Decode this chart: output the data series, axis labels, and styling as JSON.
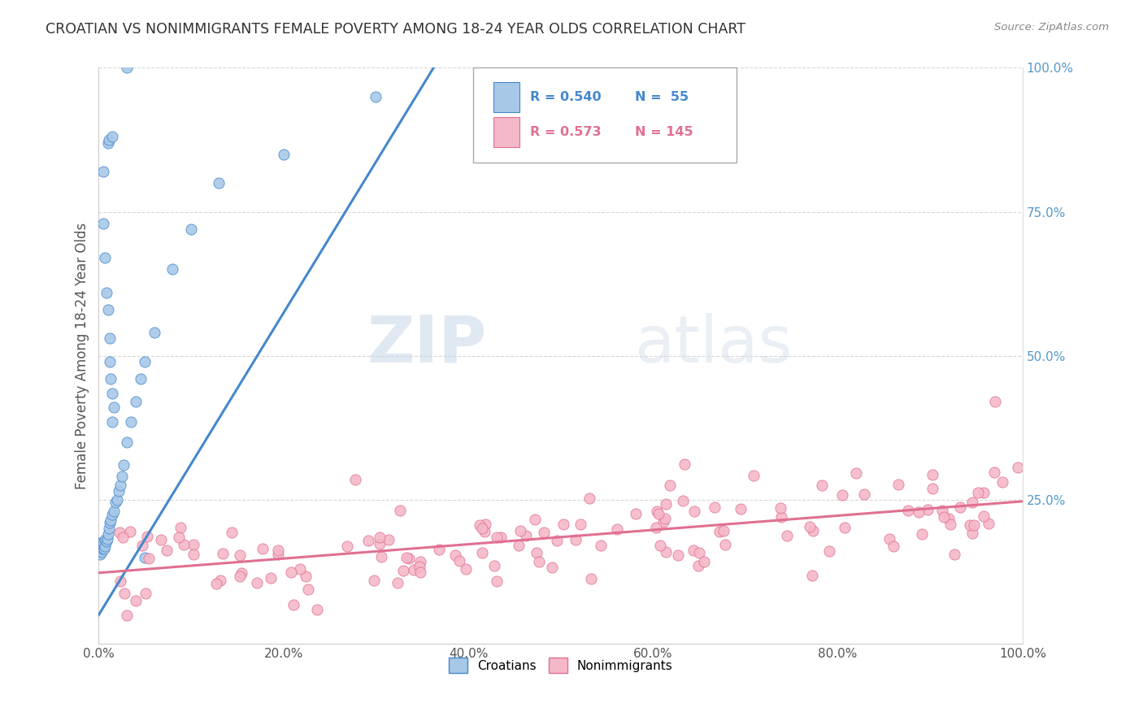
{
  "title": "CROATIAN VS NONIMMIGRANTS FEMALE POVERTY AMONG 18-24 YEAR OLDS CORRELATION CHART",
  "source": "Source: ZipAtlas.com",
  "ylabel": "Female Poverty Among 18-24 Year Olds",
  "legend_entries": [
    {
      "label": "Croatians",
      "R": "0.540",
      "N": "55",
      "dot_color": "#a8c8e8",
      "line_color": "#4488cc",
      "edge_color": "#4488cc"
    },
    {
      "label": "Nonimmigrants",
      "R": "0.573",
      "N": "145",
      "dot_color": "#f5b8c8",
      "line_color": "#e07090",
      "edge_color": "#e07090"
    }
  ],
  "watermark_zip": "ZIP",
  "watermark_atlas": "atlas",
  "bg_color": "#ffffff",
  "grid_color": "#cccccc",
  "title_color": "#333333",
  "axis_label_color": "#555555",
  "right_axis_color": "#5599cc",
  "source_color": "#888888"
}
